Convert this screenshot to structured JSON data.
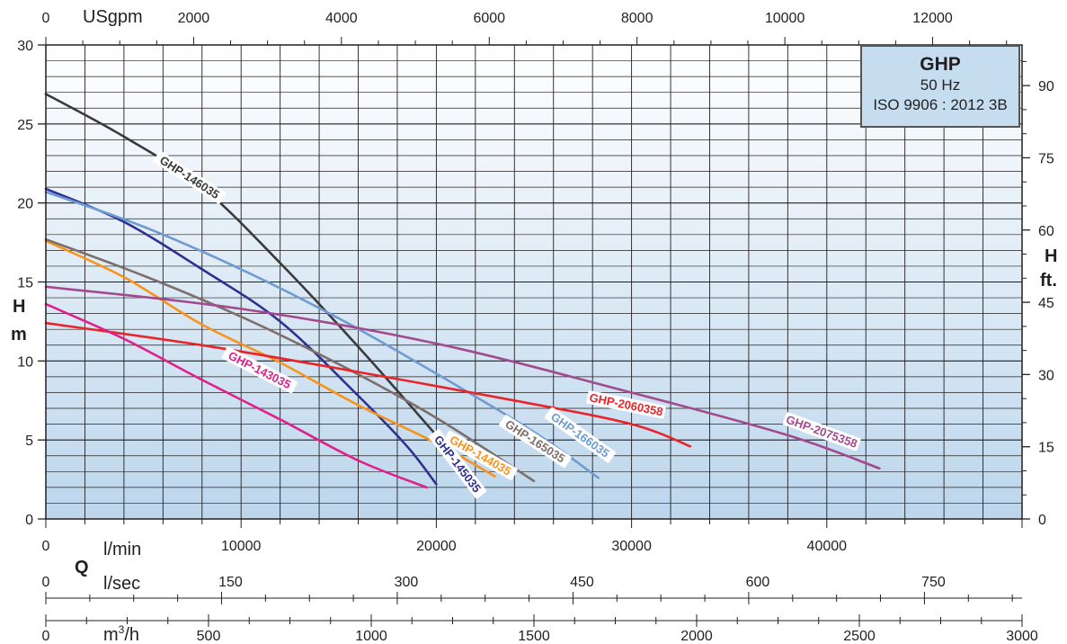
{
  "chart_data": {
    "type": "line",
    "title": "GHP",
    "subtitle_lines": [
      "50 Hz",
      "ISO 9906 : 2012 3B"
    ],
    "axes": {
      "left": {
        "label_top": "H",
        "label_bottom": "m",
        "range": [
          0,
          30
        ],
        "ticks": [
          0,
          5,
          10,
          15,
          20,
          25,
          30
        ]
      },
      "right": {
        "label_top": "H",
        "label_bottom": "ft.",
        "range": [
          0,
          98.43
        ],
        "ticks": [
          0,
          15,
          30,
          45,
          60,
          75,
          90
        ]
      },
      "top": {
        "unit": "USgpm",
        "range": [
          0,
          13210
        ],
        "ticks": [
          0,
          2000,
          4000,
          6000,
          8000,
          10000,
          12000
        ]
      },
      "bottom_lmin": {
        "unit": "l/min",
        "range": [
          0,
          50000
        ],
        "ticks": [
          0,
          10000,
          20000,
          30000,
          40000
        ]
      },
      "q_label": "Q",
      "bottom_lsec": {
        "unit": "l/sec",
        "range": [
          0,
          833.33
        ],
        "ticks": [
          0,
          150,
          300,
          450,
          600,
          750
        ]
      },
      "bottom_m3h": {
        "unit_main": "m",
        "unit_sup": "3",
        "unit_tail": "/h",
        "range": [
          0,
          3000
        ],
        "ticks": [
          0,
          500,
          1000,
          1500,
          2000,
          2500,
          3000
        ]
      }
    },
    "x_unit": "l/min",
    "y_unit": "m",
    "grid": true,
    "series": [
      {
        "name": "GHP-146035",
        "color": "#3a3a3a",
        "points": [
          [
            0,
            26.9
          ],
          [
            4000,
            24.2
          ],
          [
            8000,
            21.0
          ],
          [
            12000,
            16.2
          ],
          [
            16000,
            10.9
          ],
          [
            20000,
            5.3
          ],
          [
            22000,
            2.5
          ]
        ]
      },
      {
        "name": "GHP-145035",
        "color": "#2e3192",
        "points": [
          [
            0,
            20.9
          ],
          [
            4000,
            18.8
          ],
          [
            8000,
            15.8
          ],
          [
            12000,
            12.5
          ],
          [
            16000,
            7.8
          ],
          [
            18500,
            4.6
          ],
          [
            20000,
            2.2
          ]
        ]
      },
      {
        "name": "GHP-166035",
        "color": "#6f9bd1",
        "points": [
          [
            0,
            20.7
          ],
          [
            5000,
            18.5
          ],
          [
            10000,
            15.8
          ],
          [
            15000,
            12.7
          ],
          [
            20000,
            9.2
          ],
          [
            25000,
            5.5
          ],
          [
            28300,
            2.6
          ]
        ]
      },
      {
        "name": "GHP-144035",
        "color": "#f7941d",
        "points": [
          [
            0,
            17.6
          ],
          [
            4000,
            15.3
          ],
          [
            8000,
            12.3
          ],
          [
            12000,
            9.9
          ],
          [
            16000,
            7.2
          ],
          [
            20000,
            4.8
          ],
          [
            23000,
            2.7
          ]
        ]
      },
      {
        "name": "GHP-165035",
        "color": "#7d6f6b",
        "points": [
          [
            0,
            17.7
          ],
          [
            5000,
            15.4
          ],
          [
            10000,
            12.8
          ],
          [
            15000,
            9.8
          ],
          [
            20000,
            6.4
          ],
          [
            25000,
            2.4
          ]
        ]
      },
      {
        "name": "GHP-2075358",
        "color": "#a24a8d",
        "points": [
          [
            0,
            14.7
          ],
          [
            10000,
            13.3
          ],
          [
            20000,
            11.1
          ],
          [
            30000,
            8.0
          ],
          [
            38000,
            5.3
          ],
          [
            42700,
            3.2
          ]
        ]
      },
      {
        "name": "GHP-2060358",
        "color": "#e8252b",
        "points": [
          [
            0,
            12.4
          ],
          [
            8000,
            11.0
          ],
          [
            16000,
            9.3
          ],
          [
            24000,
            7.5
          ],
          [
            30000,
            6.0
          ],
          [
            33000,
            4.6
          ]
        ]
      },
      {
        "name": "GHP-143035",
        "color": "#e0218a",
        "points": [
          [
            0,
            13.6
          ],
          [
            4000,
            11.4
          ],
          [
            8000,
            8.8
          ],
          [
            12000,
            6.3
          ],
          [
            16000,
            3.7
          ],
          [
            19500,
            2.0
          ]
        ]
      }
    ]
  }
}
